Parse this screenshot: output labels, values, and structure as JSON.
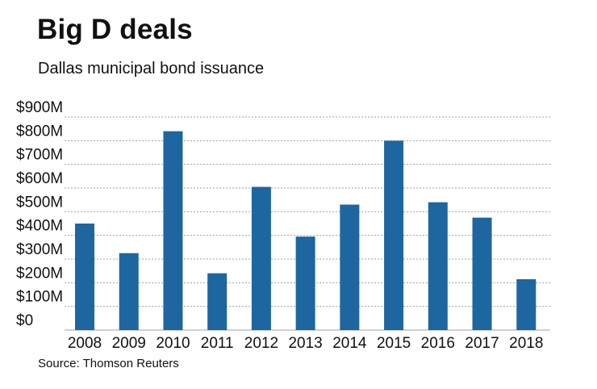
{
  "chart_data": {
    "type": "bar",
    "title": "Big D deals",
    "subtitle": "Dallas municipal bond issuance",
    "source": "Source: Thomson Reuters",
    "xlabel": "",
    "ylabel": "",
    "categories": [
      "2008",
      "2009",
      "2010",
      "2011",
      "2012",
      "2013",
      "2014",
      "2015",
      "2016",
      "2017",
      "2018"
    ],
    "values": [
      450,
      325,
      840,
      240,
      605,
      395,
      530,
      800,
      540,
      475,
      215
    ],
    "unit": "$M",
    "ylim": [
      0,
      900
    ],
    "yticks": [
      0,
      100,
      200,
      300,
      400,
      500,
      600,
      700,
      800,
      900
    ],
    "ytick_labels": [
      "$0",
      "$100M",
      "$200M",
      "$300M",
      "$400M",
      "$500M",
      "$600M",
      "$700M",
      "$800M",
      "$900M"
    ],
    "grid": true,
    "bar_color": "#1d66a0",
    "grid_color": "#a0a0a0"
  }
}
